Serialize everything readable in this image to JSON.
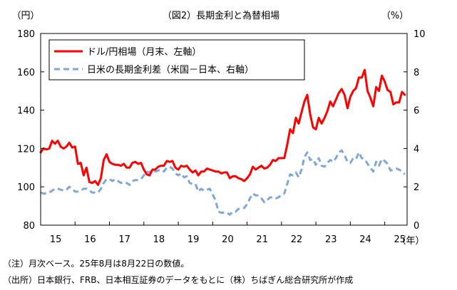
{
  "chart_data": {
    "type": "line",
    "title": "（図2）長期金利と為替相場",
    "left_axis_unit": "（円）",
    "right_axis_unit": "（%）",
    "x_unit": "（年）",
    "ylim_left": [
      80,
      180
    ],
    "yticks_left": [
      "80",
      "100",
      "120",
      "140",
      "160",
      "180"
    ],
    "ylim_right": [
      0,
      10
    ],
    "yticks_right": [
      "0",
      "2",
      "4",
      "6",
      "8",
      "10"
    ],
    "xticks": [
      "15",
      "16",
      "17",
      "18",
      "19",
      "20",
      "21",
      "22",
      "23",
      "24",
      "25"
    ],
    "xlim": [
      2015.0,
      2025.65
    ],
    "grid": false,
    "legend_position": "top-left",
    "series": [
      {
        "name": "ドル/円相場（月末、左軸）",
        "axis": "left",
        "color": "#ff0000",
        "style": "solid",
        "points": [
          [
            2015.0,
            118
          ],
          [
            2015.083,
            120
          ],
          [
            2015.167,
            119.5
          ],
          [
            2015.25,
            120
          ],
          [
            2015.333,
            124
          ],
          [
            2015.417,
            122.5
          ],
          [
            2015.5,
            124
          ],
          [
            2015.583,
            121
          ],
          [
            2015.667,
            120
          ],
          [
            2015.75,
            121
          ],
          [
            2015.833,
            123
          ],
          [
            2015.917,
            120.5
          ],
          [
            2016.0,
            121
          ],
          [
            2016.083,
            112
          ],
          [
            2016.167,
            112.5
          ],
          [
            2016.25,
            106
          ],
          [
            2016.333,
            110
          ],
          [
            2016.417,
            102.5
          ],
          [
            2016.5,
            102
          ],
          [
            2016.583,
            103
          ],
          [
            2016.667,
            101
          ],
          [
            2016.75,
            104.5
          ],
          [
            2016.833,
            114
          ],
          [
            2016.917,
            117
          ],
          [
            2017.0,
            113
          ],
          [
            2017.083,
            112
          ],
          [
            2017.167,
            111.5
          ],
          [
            2017.25,
            111.5
          ],
          [
            2017.333,
            111
          ],
          [
            2017.417,
            112
          ],
          [
            2017.5,
            110
          ],
          [
            2017.583,
            110
          ],
          [
            2017.667,
            112.5
          ],
          [
            2017.75,
            113
          ],
          [
            2017.833,
            112
          ],
          [
            2017.917,
            112.5
          ],
          [
            2018.0,
            109
          ],
          [
            2018.083,
            106.5
          ],
          [
            2018.167,
            106
          ],
          [
            2018.25,
            109
          ],
          [
            2018.333,
            109
          ],
          [
            2018.417,
            110.5
          ],
          [
            2018.5,
            111
          ],
          [
            2018.583,
            111
          ],
          [
            2018.667,
            113.5
          ],
          [
            2018.75,
            113
          ],
          [
            2018.833,
            113.5
          ],
          [
            2018.917,
            110
          ],
          [
            2019.0,
            109
          ],
          [
            2019.083,
            111
          ],
          [
            2019.167,
            110.5
          ],
          [
            2019.25,
            111
          ],
          [
            2019.333,
            109
          ],
          [
            2019.417,
            107.5
          ],
          [
            2019.5,
            108.5
          ],
          [
            2019.583,
            106
          ],
          [
            2019.667,
            108
          ],
          [
            2019.75,
            108
          ],
          [
            2019.833,
            109.5
          ],
          [
            2019.917,
            109
          ],
          [
            2020.0,
            108.5
          ],
          [
            2020.083,
            108
          ],
          [
            2020.167,
            108
          ],
          [
            2020.25,
            107
          ],
          [
            2020.333,
            107.5
          ],
          [
            2020.417,
            107.5
          ],
          [
            2020.5,
            104.5
          ],
          [
            2020.583,
            105.5
          ],
          [
            2020.667,
            105.5
          ],
          [
            2020.75,
            104.5
          ],
          [
            2020.833,
            104
          ],
          [
            2020.917,
            103
          ],
          [
            2021.0,
            104.5
          ],
          [
            2021.083,
            106.5
          ],
          [
            2021.167,
            110.5
          ],
          [
            2021.25,
            109
          ],
          [
            2021.333,
            110
          ],
          [
            2021.417,
            111
          ],
          [
            2021.5,
            109.5
          ],
          [
            2021.583,
            110
          ],
          [
            2021.667,
            111.5
          ],
          [
            2021.75,
            114
          ],
          [
            2021.833,
            113.5
          ],
          [
            2021.917,
            115
          ],
          [
            2022.0,
            115
          ],
          [
            2022.083,
            115
          ],
          [
            2022.167,
            122
          ],
          [
            2022.25,
            130
          ],
          [
            2022.333,
            128
          ],
          [
            2022.417,
            136
          ],
          [
            2022.5,
            133
          ],
          [
            2022.583,
            139
          ],
          [
            2022.667,
            144.5
          ],
          [
            2022.75,
            148
          ],
          [
            2022.833,
            138
          ],
          [
            2022.917,
            131
          ],
          [
            2023.0,
            130
          ],
          [
            2023.083,
            136
          ],
          [
            2023.167,
            133
          ],
          [
            2023.25,
            136
          ],
          [
            2023.333,
            139.5
          ],
          [
            2023.417,
            144.5
          ],
          [
            2023.5,
            142
          ],
          [
            2023.583,
            145.5
          ],
          [
            2023.667,
            149
          ],
          [
            2023.75,
            151
          ],
          [
            2023.833,
            148
          ],
          [
            2023.917,
            141
          ],
          [
            2024.0,
            147
          ],
          [
            2024.083,
            150
          ],
          [
            2024.167,
            151.5
          ],
          [
            2024.25,
            157
          ],
          [
            2024.333,
            157
          ],
          [
            2024.417,
            161
          ],
          [
            2024.5,
            150
          ],
          [
            2024.583,
            146.5
          ],
          [
            2024.667,
            142
          ],
          [
            2024.75,
            152
          ],
          [
            2024.833,
            150
          ],
          [
            2024.917,
            158
          ],
          [
            2025.0,
            155
          ],
          [
            2025.083,
            150.5
          ],
          [
            2025.167,
            149.5
          ],
          [
            2025.25,
            143
          ],
          [
            2025.333,
            144
          ],
          [
            2025.417,
            144
          ],
          [
            2025.5,
            149.5
          ],
          [
            2025.583,
            148
          ]
        ]
      },
      {
        "name": "日米の長期金利差（米国－日本、右軸）",
        "axis": "right",
        "color": "#7fa7d9",
        "style": "dashed",
        "points": [
          [
            2015.0,
            1.7
          ],
          [
            2015.083,
            1.65
          ],
          [
            2015.167,
            1.65
          ],
          [
            2015.25,
            1.7
          ],
          [
            2015.333,
            1.8
          ],
          [
            2015.417,
            1.9
          ],
          [
            2015.5,
            1.9
          ],
          [
            2015.583,
            1.85
          ],
          [
            2015.667,
            1.8
          ],
          [
            2015.75,
            1.85
          ],
          [
            2015.833,
            2.0
          ],
          [
            2015.917,
            1.9
          ],
          [
            2016.0,
            1.75
          ],
          [
            2016.083,
            1.75
          ],
          [
            2016.167,
            1.8
          ],
          [
            2016.25,
            1.9
          ],
          [
            2016.333,
            1.9
          ],
          [
            2016.417,
            1.8
          ],
          [
            2016.5,
            1.7
          ],
          [
            2016.583,
            1.7
          ],
          [
            2016.667,
            1.7
          ],
          [
            2016.75,
            1.9
          ],
          [
            2016.833,
            2.2
          ],
          [
            2016.917,
            2.4
          ],
          [
            2017.0,
            2.4
          ],
          [
            2017.083,
            2.3
          ],
          [
            2017.167,
            2.4
          ],
          [
            2017.25,
            2.3
          ],
          [
            2017.333,
            2.2
          ],
          [
            2017.417,
            2.25
          ],
          [
            2017.5,
            2.2
          ],
          [
            2017.583,
            2.1
          ],
          [
            2017.667,
            2.3
          ],
          [
            2017.75,
            2.35
          ],
          [
            2017.833,
            2.35
          ],
          [
            2017.917,
            2.4
          ],
          [
            2018.0,
            2.6
          ],
          [
            2018.083,
            2.8
          ],
          [
            2018.167,
            2.75
          ],
          [
            2018.25,
            2.9
          ],
          [
            2018.333,
            2.8
          ],
          [
            2018.417,
            2.85
          ],
          [
            2018.5,
            2.9
          ],
          [
            2018.583,
            2.8
          ],
          [
            2018.667,
            3.0
          ],
          [
            2018.75,
            3.05
          ],
          [
            2018.833,
            2.95
          ],
          [
            2018.917,
            2.7
          ],
          [
            2019.0,
            2.6
          ],
          [
            2019.083,
            2.7
          ],
          [
            2019.167,
            2.5
          ],
          [
            2019.25,
            2.55
          ],
          [
            2019.333,
            2.2
          ],
          [
            2019.417,
            2.15
          ],
          [
            2019.5,
            2.15
          ],
          [
            2019.583,
            1.75
          ],
          [
            2019.667,
            1.9
          ],
          [
            2019.75,
            1.8
          ],
          [
            2019.833,
            1.85
          ],
          [
            2019.917,
            1.9
          ],
          [
            2020.0,
            1.6
          ],
          [
            2020.083,
            1.3
          ],
          [
            2020.167,
            0.7
          ],
          [
            2020.25,
            0.65
          ],
          [
            2020.333,
            0.65
          ],
          [
            2020.417,
            0.65
          ],
          [
            2020.5,
            0.55
          ],
          [
            2020.583,
            0.7
          ],
          [
            2020.667,
            0.7
          ],
          [
            2020.75,
            0.85
          ],
          [
            2020.833,
            0.85
          ],
          [
            2020.917,
            0.9
          ],
          [
            2021.0,
            1.1
          ],
          [
            2021.083,
            1.4
          ],
          [
            2021.167,
            1.65
          ],
          [
            2021.25,
            1.55
          ],
          [
            2021.333,
            1.55
          ],
          [
            2021.417,
            1.4
          ],
          [
            2021.5,
            1.2
          ],
          [
            2021.583,
            1.3
          ],
          [
            2021.667,
            1.45
          ],
          [
            2021.75,
            1.45
          ],
          [
            2021.833,
            1.4
          ],
          [
            2021.917,
            1.45
          ],
          [
            2022.0,
            1.6
          ],
          [
            2022.083,
            1.65
          ],
          [
            2022.167,
            2.15
          ],
          [
            2022.25,
            2.65
          ],
          [
            2022.333,
            2.6
          ],
          [
            2022.417,
            2.75
          ],
          [
            2022.5,
            2.5
          ],
          [
            2022.583,
            2.9
          ],
          [
            2022.667,
            3.55
          ],
          [
            2022.75,
            3.8
          ],
          [
            2022.833,
            3.4
          ],
          [
            2022.917,
            3.45
          ],
          [
            2023.0,
            3.15
          ],
          [
            2023.083,
            3.5
          ],
          [
            2023.167,
            3.1
          ],
          [
            2023.25,
            3.05
          ],
          [
            2023.333,
            3.25
          ],
          [
            2023.417,
            3.4
          ],
          [
            2023.5,
            3.3
          ],
          [
            2023.583,
            3.5
          ],
          [
            2023.667,
            3.8
          ],
          [
            2023.75,
            3.9
          ],
          [
            2023.833,
            3.65
          ],
          [
            2023.917,
            3.3
          ],
          [
            2024.0,
            3.25
          ],
          [
            2024.083,
            3.5
          ],
          [
            2024.167,
            3.45
          ],
          [
            2024.25,
            3.8
          ],
          [
            2024.333,
            3.5
          ],
          [
            2024.417,
            3.45
          ],
          [
            2024.5,
            3.2
          ],
          [
            2024.583,
            3.0
          ],
          [
            2024.667,
            2.8
          ],
          [
            2024.75,
            3.3
          ],
          [
            2024.833,
            3.1
          ],
          [
            2024.917,
            3.45
          ],
          [
            2025.0,
            3.35
          ],
          [
            2025.083,
            3.2
          ],
          [
            2025.167,
            2.85
          ],
          [
            2025.25,
            2.9
          ],
          [
            2025.333,
            2.95
          ],
          [
            2025.417,
            2.9
          ],
          [
            2025.5,
            2.8
          ],
          [
            2025.583,
            2.65
          ]
        ]
      }
    ]
  },
  "notes": {
    "note1": "（注）月次ベース。25年8月は8月22日の数値。",
    "note2": "（出所）日本銀行、FRB、日本相互証券のデータをもとに（株）ちばぎん総合研究所が作成"
  }
}
